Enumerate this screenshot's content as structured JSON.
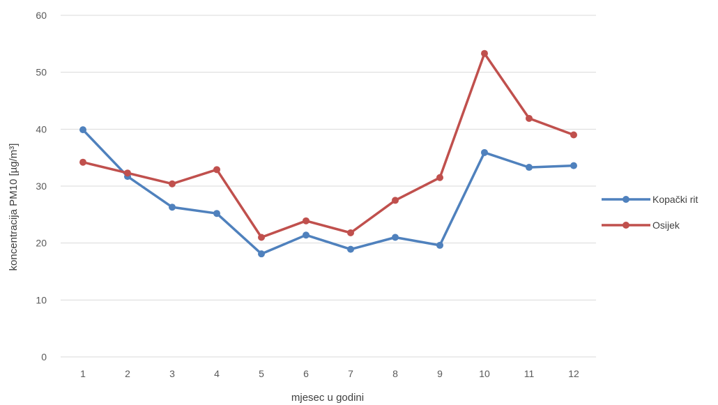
{
  "chart_data": {
    "type": "line",
    "title": "",
    "xlabel": "mjesec u godini",
    "ylabel": "koncentracija PM10 [µg/m³]",
    "x": [
      "1",
      "2",
      "3",
      "4",
      "5",
      "6",
      "7",
      "8",
      "9",
      "10",
      "11",
      "12"
    ],
    "ylim": [
      0,
      60
    ],
    "yticks": [
      0,
      10,
      20,
      30,
      40,
      50,
      60
    ],
    "grid": true,
    "legend": "right",
    "series": [
      {
        "name": "Kopački rit",
        "color": "#4f81bd",
        "values": [
          39.9,
          31.7,
          26.3,
          25.2,
          18.1,
          21.4,
          18.9,
          21.0,
          19.6,
          35.9,
          33.3,
          33.6
        ]
      },
      {
        "name": "Osijek",
        "color": "#c0504d",
        "values": [
          34.2,
          32.3,
          30.4,
          32.9,
          21.0,
          23.9,
          21.8,
          27.5,
          31.5,
          53.3,
          41.9,
          39.0
        ]
      }
    ]
  }
}
